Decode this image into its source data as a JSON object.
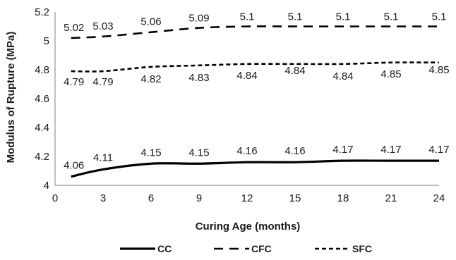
{
  "chart_data": {
    "type": "line",
    "title": "",
    "xlabel": "Curing Age (months)",
    "ylabel": "Modulus of Rupture (MPa)",
    "xlim": [
      0,
      24
    ],
    "ylim": [
      4,
      5.2
    ],
    "x_ticks": [
      0,
      3,
      6,
      9,
      12,
      15,
      18,
      21,
      24
    ],
    "y_ticks": [
      4,
      4.2,
      4.4,
      4.6,
      4.8,
      5,
      5.2
    ],
    "x_tick_labels": [
      "0",
      "3",
      "6",
      "9",
      "12",
      "15",
      "18",
      "21",
      "24"
    ],
    "y_tick_labels": [
      "4",
      "4.2",
      "4.4",
      "4.6",
      "4.8",
      "5",
      "5.2"
    ],
    "grid": false,
    "legend_position": "bottom",
    "x": [
      1,
      3,
      6,
      9,
      12,
      15,
      18,
      21,
      24
    ],
    "series": [
      {
        "name": "CC",
        "dash": "solid",
        "color": "#000000",
        "values": [
          4.06,
          4.11,
          4.15,
          4.15,
          4.16,
          4.16,
          4.17,
          4.17,
          4.17
        ],
        "labels": [
          "4.06",
          "4.11",
          "4.15",
          "4.15",
          "4.16",
          "4.16",
          "4.17",
          "4.17",
          "4.17"
        ]
      },
      {
        "name": "CFC",
        "dash": "long-dash",
        "color": "#000000",
        "values": [
          5.02,
          5.03,
          5.06,
          5.09,
          5.1,
          5.1,
          5.1,
          5.1,
          5.1
        ],
        "labels": [
          "5.02",
          "5.03",
          "5.06",
          "5.09",
          "5.1",
          "5.1",
          "5.1",
          "5.1",
          "5.1"
        ]
      },
      {
        "name": "SFC",
        "dash": "short-dash",
        "color": "#000000",
        "values": [
          4.79,
          4.79,
          4.82,
          4.83,
          4.84,
          4.84,
          4.84,
          4.85,
          4.85
        ],
        "labels": [
          "4.79",
          "4.79",
          "4.82",
          "4.83",
          "4.84",
          "4.84",
          "4.84",
          "4.85",
          "4.85"
        ]
      }
    ]
  }
}
